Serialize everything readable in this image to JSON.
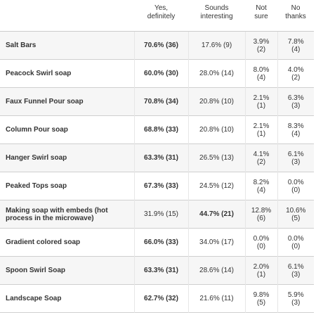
{
  "table": {
    "headers": {
      "item": "",
      "yes": "Yes,\ndefinitely",
      "sounds": "Sounds\ninteresting",
      "not_sure": "Not\nsure",
      "no_thanks": "No\nthanks"
    },
    "rows": [
      {
        "item": "Salt Bars",
        "yes": "70.6% (36)",
        "sounds": "17.6% (9)",
        "not_sure_pct": "3.9%",
        "not_sure_cnt": "(2)",
        "no_pct": "7.8%",
        "no_cnt": "(4)"
      },
      {
        "item": "Peacock Swirl soap",
        "yes": "60.0% (30)",
        "sounds": "28.0% (14)",
        "not_sure_pct": "8.0%",
        "not_sure_cnt": "(4)",
        "no_pct": "4.0%",
        "no_cnt": "(2)"
      },
      {
        "item": "Faux Funnel Pour soap",
        "yes": "70.8% (34)",
        "sounds": "20.8% (10)",
        "not_sure_pct": "2.1%",
        "not_sure_cnt": "(1)",
        "no_pct": "6.3%",
        "no_cnt": "(3)"
      },
      {
        "item": "Column Pour soap",
        "yes": "68.8% (33)",
        "sounds": "20.8% (10)",
        "not_sure_pct": "2.1%",
        "not_sure_cnt": "(1)",
        "no_pct": "8.3%",
        "no_cnt": "(4)"
      },
      {
        "item": "Hanger Swirl soap",
        "yes": "63.3% (31)",
        "sounds": "26.5% (13)",
        "not_sure_pct": "4.1%",
        "not_sure_cnt": "(2)",
        "no_pct": "6.1%",
        "no_cnt": "(3)"
      },
      {
        "item": "Peaked Tops soap",
        "yes": "67.3% (33)",
        "sounds": "24.5% (12)",
        "not_sure_pct": "8.2%",
        "not_sure_cnt": "(4)",
        "no_pct": "0.0%",
        "no_cnt": "(0)"
      },
      {
        "item": "Making soap with embeds (hot process in the microwave)",
        "yes": "31.9% (15)",
        "sounds": "44.7% (21)",
        "not_sure_pct": "12.8%",
        "not_sure_cnt": "(6)",
        "no_pct": "10.6%",
        "no_cnt": "(5)"
      },
      {
        "item": "Gradient colored soap",
        "yes": "66.0% (33)",
        "sounds": "34.0% (17)",
        "not_sure_pct": "0.0%",
        "not_sure_cnt": "(0)",
        "no_pct": "0.0%",
        "no_cnt": "(0)"
      },
      {
        "item": "Spoon Swirl Soap",
        "yes": "63.3% (31)",
        "sounds": "28.6% (14)",
        "not_sure_pct": "2.0%",
        "not_sure_cnt": "(1)",
        "no_pct": "6.1%",
        "no_cnt": "(3)"
      },
      {
        "item": "Landscape Soap",
        "yes": "62.7% (32)",
        "sounds": "21.6% (11)",
        "not_sure_pct": "9.8%",
        "not_sure_cnt": "(5)",
        "no_pct": "5.9%",
        "no_cnt": "(3)"
      }
    ]
  }
}
